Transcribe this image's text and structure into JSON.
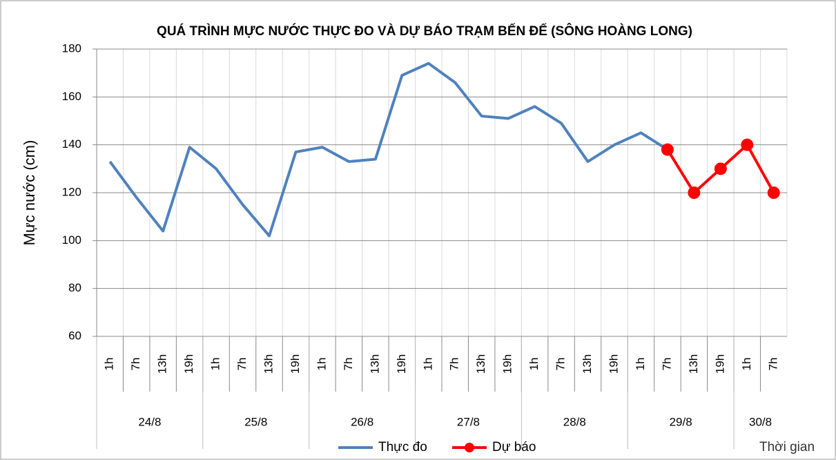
{
  "chart_data": {
    "type": "line",
    "title": "QUÁ TRÌNH MỰC NƯỚC THỰC ĐO VÀ DỰ BÁO TRẠM BẾN ĐẾ (SÔNG HOÀNG LONG)",
    "y_label": "Mực nước (cm)",
    "x_label": "Thời gian",
    "groups": [
      {
        "label": "24/8",
        "categories": [
          "1h",
          "7h",
          "13h",
          "19h"
        ]
      },
      {
        "label": "25/8",
        "categories": [
          "1h",
          "7h",
          "13h",
          "19h"
        ]
      },
      {
        "label": "26/8",
        "categories": [
          "1h",
          "7h",
          "13h",
          "19h"
        ]
      },
      {
        "label": "27/8",
        "categories": [
          "1h",
          "7h",
          "13h",
          "19h"
        ]
      },
      {
        "label": "28/8",
        "categories": [
          "1h",
          "7h",
          "13h",
          "19h"
        ]
      },
      {
        "label": "29/8",
        "categories": [
          "1h",
          "7h",
          "13h",
          "19h"
        ]
      },
      {
        "label": "30/8",
        "categories": [
          "1h",
          "7h"
        ]
      }
    ],
    "series": [
      {
        "name": "Thực đo",
        "color": "#4f81bd",
        "marker": false,
        "values": [
          133,
          118,
          104,
          139,
          130,
          115,
          102,
          137,
          139,
          133,
          134,
          169,
          174,
          166,
          152,
          151,
          156,
          149,
          133,
          140,
          145,
          138,
          null,
          null,
          null,
          null
        ]
      },
      {
        "name": "Dự báo",
        "color": "#ff0000",
        "marker": true,
        "values": [
          null,
          null,
          null,
          null,
          null,
          null,
          null,
          null,
          null,
          null,
          null,
          null,
          null,
          null,
          null,
          null,
          null,
          null,
          null,
          null,
          null,
          138,
          120,
          130,
          140,
          120
        ]
      }
    ],
    "ylim": [
      60,
      180
    ],
    "yticks": [
      60,
      80,
      100,
      120,
      140,
      160,
      180
    ],
    "grid": true,
    "legend": "bottom"
  }
}
